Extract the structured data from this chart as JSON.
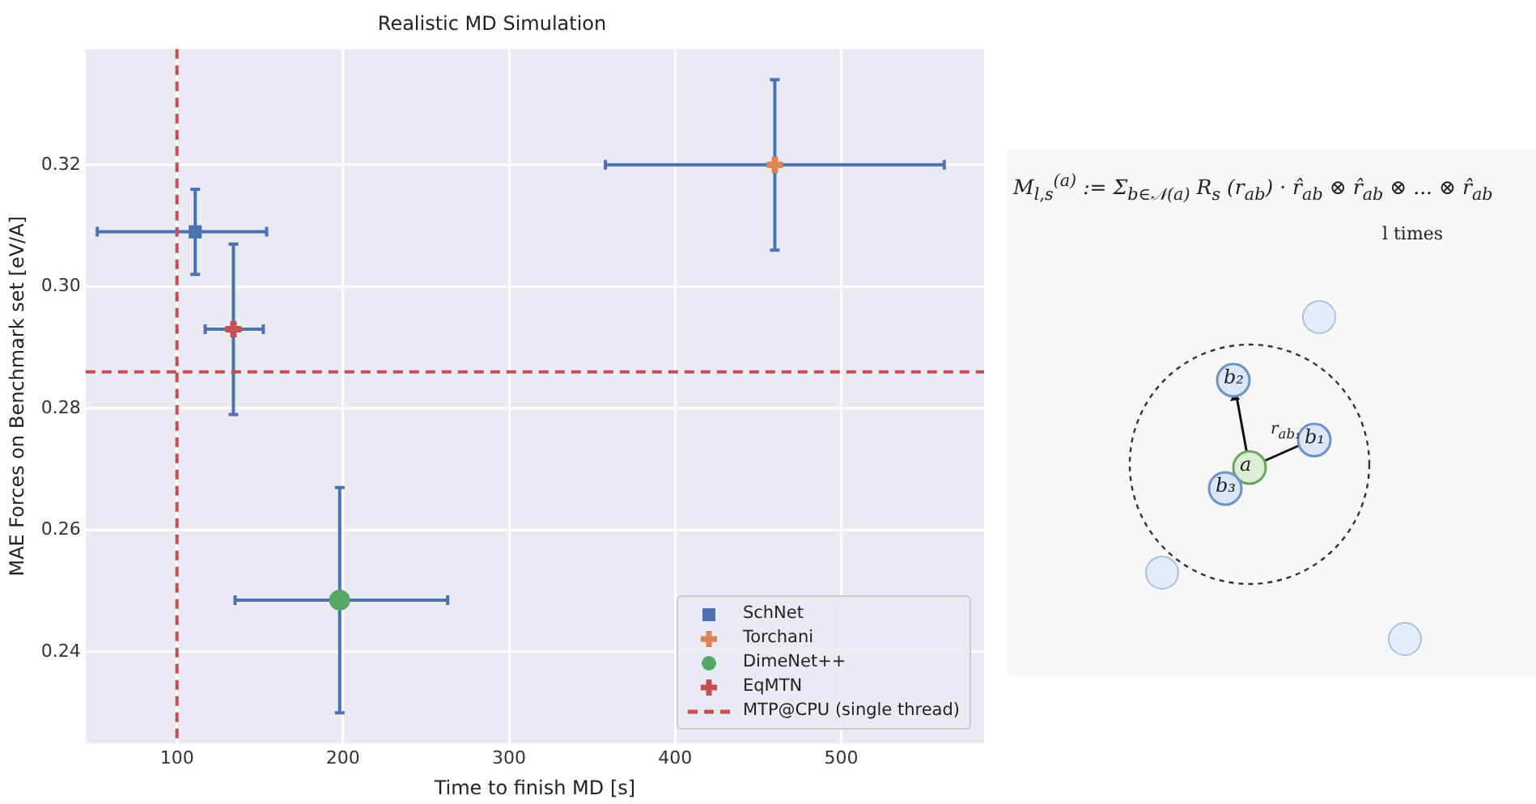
{
  "chart_data": [
    {
      "type": "scatter",
      "title": "Realistic MD Simulation",
      "xlabel": "Time to finish MD [s]",
      "ylabel": "MAE Forces on Benchmark set [eV/A]",
      "series": [
        {
          "name": "SchNet",
          "color": "#4c72b0",
          "marker": "square",
          "x": [
            111
          ],
          "values": [
            0.309
          ],
          "xerrors": [
            [
              52,
              154
            ]
          ],
          "errors": [
            [
              0.302,
              0.316
            ]
          ]
        },
        {
          "name": "Torchani",
          "color": "#dd8452",
          "marker": "cross",
          "x": [
            460
          ],
          "values": [
            0.32
          ],
          "xerrors": [
            [
              358,
              562
            ]
          ],
          "errors": [
            [
              0.306,
              0.334
            ]
          ]
        },
        {
          "name": "DimeNet++",
          "color": "#55a868",
          "marker": "circle",
          "x": [
            198
          ],
          "values": [
            0.2485
          ],
          "xerrors": [
            [
              135,
              263
            ]
          ],
          "errors": [
            [
              0.23,
              0.267
            ]
          ]
        },
        {
          "name": "EqMTN",
          "color": "#c44e52",
          "marker": "cross",
          "x": [
            134
          ],
          "values": [
            0.293
          ],
          "xerrors": [
            [
              117,
              152
            ]
          ],
          "errors": [
            [
              0.279,
              0.307
            ]
          ]
        }
      ],
      "ref_lines": [
        {
          "axis": "y",
          "value": 0.286,
          "label": "MTP@CPU (single thread)",
          "color": "#c44e52",
          "line_style": "dashed"
        },
        {
          "axis": "x",
          "value": 100,
          "color": "#c44e52",
          "line_style": "dashed"
        }
      ],
      "xlim": [
        45,
        586
      ],
      "xticks": [
        100,
        200,
        300,
        400,
        500
      ],
      "ylim": [
        0.225,
        0.339
      ],
      "yticks": [
        0.24,
        0.26,
        0.28,
        {
          "value": 0.3,
          "label": "0.30"
        },
        0.32
      ],
      "grid": true,
      "legend": "bottom right"
    },
    {
      "type": "other",
      "annotations": [
        "M$_{l,s}$$^{(a)}$ := Σ$_{b∈𝒩(a)}$ R$_{s}$ (r$_{ab}$) · r̂$_{ab}$ ⊗ r̂$_{ab}$ ⊗ ... ⊗ r̂$_{ab}$",
        "l times",
        "a",
        "b₁",
        "b₂",
        "b₃",
        "r$_{ab₁}$"
      ]
    }
  ]
}
